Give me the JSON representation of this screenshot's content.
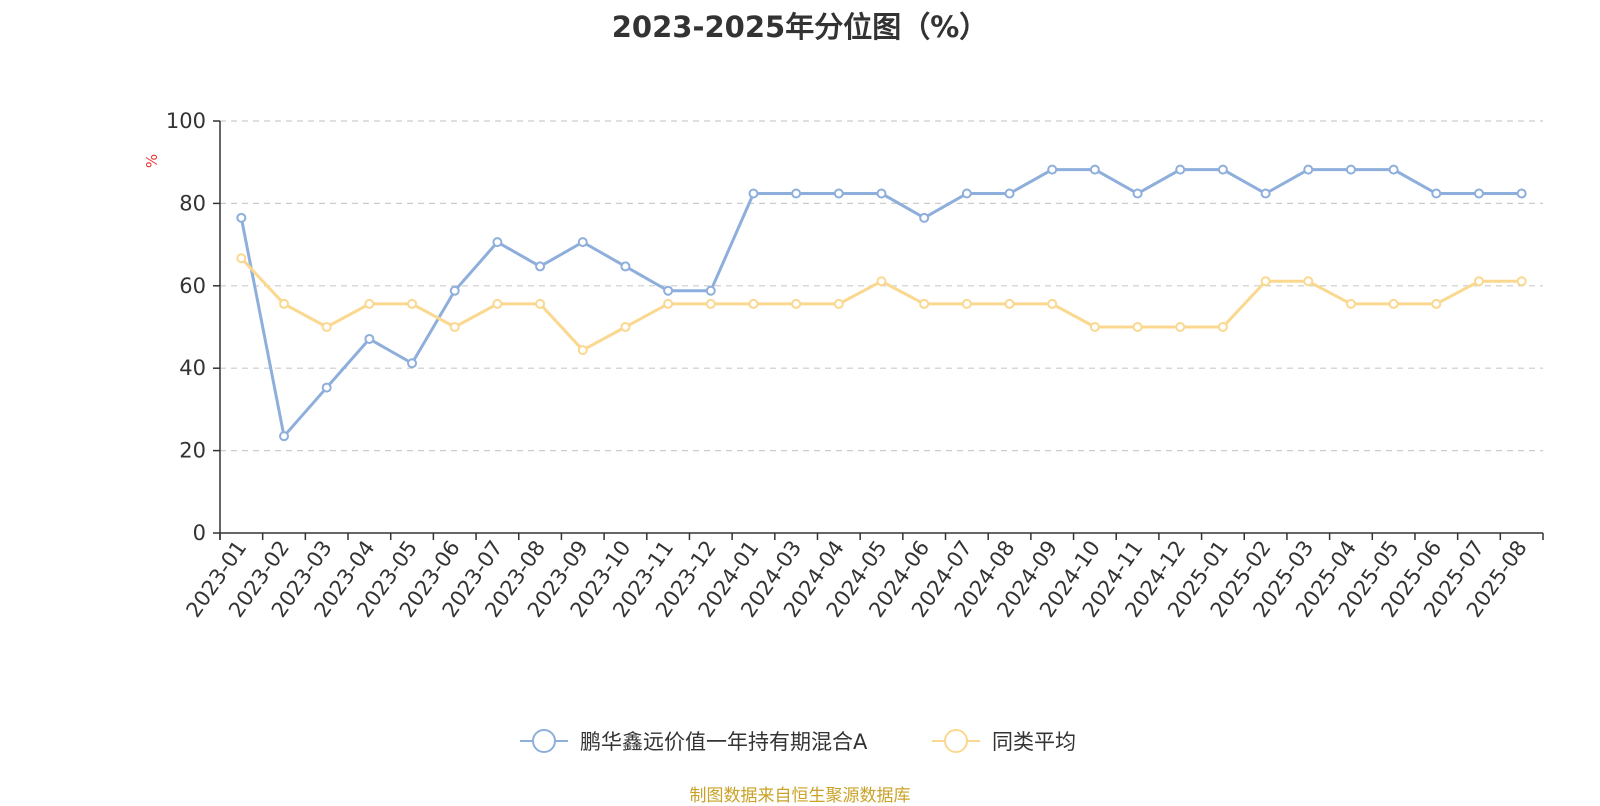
{
  "page": {
    "title": "2023-2025年分位图（%）",
    "source": "制图数据来自恒生聚源数据库"
  },
  "chart_data": {
    "type": "line",
    "title": "2023-2025年分位图（%）",
    "ylabel": "%",
    "xlabel": "",
    "ylim": [
      0,
      100
    ],
    "yticks": [
      0,
      20,
      40,
      60,
      80,
      100
    ],
    "grid": true,
    "legend_position": "bottom",
    "categories": [
      "2023-01",
      "2023-02",
      "2023-03",
      "2023-04",
      "2023-05",
      "2023-06",
      "2023-07",
      "2023-08",
      "2023-09",
      "2023-10",
      "2023-11",
      "2023-12",
      "2024-01",
      "2024-03",
      "2024-04",
      "2024-05",
      "2024-06",
      "2024-07",
      "2024-08",
      "2024-09",
      "2024-10",
      "2024-11",
      "2024-12",
      "2025-01",
      "2025-02",
      "2025-03",
      "2025-04",
      "2025-05",
      "2025-06",
      "2025-07",
      "2025-08"
    ],
    "series": [
      {
        "name": "鹏华鑫远价值一年持有期混合A",
        "color": "#8eaedb",
        "values": [
          76.5,
          23.5,
          35.3,
          47.1,
          41.2,
          58.8,
          70.6,
          64.7,
          70.6,
          64.7,
          58.8,
          58.8,
          82.4,
          82.4,
          82.4,
          82.4,
          76.5,
          82.4,
          82.4,
          88.2,
          88.2,
          82.4,
          88.2,
          88.2,
          82.4,
          88.2,
          88.2,
          88.2,
          82.4,
          82.4,
          82.4
        ]
      },
      {
        "name": "同类平均",
        "color": "#fbd88f",
        "values": [
          66.7,
          55.6,
          50.0,
          55.6,
          55.6,
          50.0,
          55.6,
          55.6,
          44.4,
          50.0,
          55.6,
          55.6,
          55.6,
          55.6,
          55.6,
          61.1,
          55.6,
          55.6,
          55.6,
          55.6,
          50.0,
          50.0,
          50.0,
          50.0,
          61.1,
          61.1,
          55.6,
          55.6,
          55.6,
          61.1,
          61.1
        ]
      }
    ]
  }
}
